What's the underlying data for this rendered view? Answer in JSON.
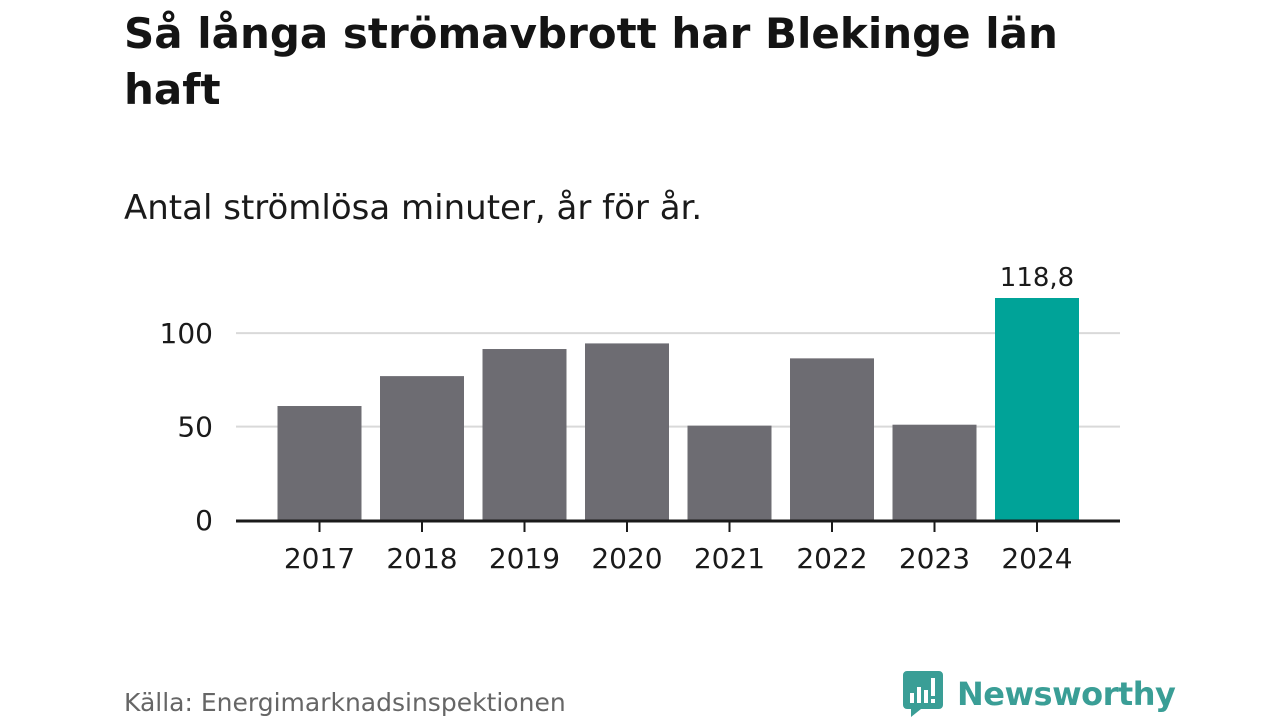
{
  "header": {
    "title": "Så långa strömavbrott har Blekinge län haft",
    "subtitle": "Antal strömlösa minuter, år för år."
  },
  "footer": {
    "source": "Källa: Energimarknadsinspektionen",
    "brand": "Newsworthy",
    "brand_icon": "bar-chart-speech-bubble-icon"
  },
  "colors": {
    "bar_default": "#6d6c72",
    "bar_highlight": "#00a398",
    "gridline": "#d9d9d9",
    "axis": "#1a1a1a",
    "brand": "#3a9e96"
  },
  "chart_data": {
    "type": "bar",
    "title": "Så långa strömavbrott har Blekinge län haft",
    "subtitle": "Antal strömlösa minuter, år för år.",
    "xlabel": "",
    "ylabel": "",
    "categories": [
      "2017",
      "2018",
      "2019",
      "2020",
      "2021",
      "2022",
      "2023",
      "2024"
    ],
    "values": [
      61,
      77,
      91.5,
      94.5,
      50.5,
      86.5,
      51,
      118.8
    ],
    "highlight_index": 7,
    "data_labels": [
      {
        "index": 7,
        "text": "118,8"
      }
    ],
    "y_ticks": [
      0,
      50,
      100
    ],
    "ylim": [
      0,
      118.8
    ],
    "grid": true,
    "legend": "none"
  }
}
